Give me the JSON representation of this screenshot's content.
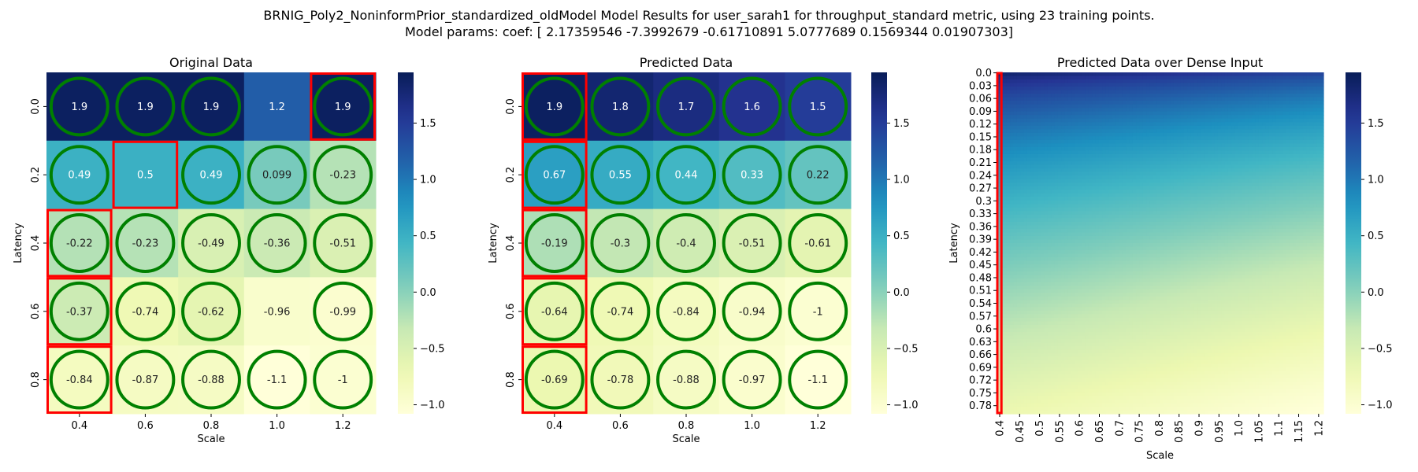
{
  "figure": {
    "title_line1": "BRNIG_Poly2_NoninformPrior_standardized_oldModel Model Results for user_sarah1 for throughput_standard metric, using 23 training points.",
    "title_line2": "Model params: coef: [ 2.17359546 -7.3992679  -0.61710891  5.0777689   0.1569344   0.01907303]"
  },
  "colormap": {
    "name": "YlGnBu",
    "range": [
      -1.08,
      1.95
    ],
    "stops": [
      "#ffffd9",
      "#edf8b1",
      "#c7e9b4",
      "#7fcdbb",
      "#41b6c4",
      "#1d91c0",
      "#225ea8",
      "#253494",
      "#081d58"
    ],
    "ticks": [
      -1.0,
      -0.5,
      0.0,
      0.5,
      1.0,
      1.5
    ],
    "tick_labels": [
      "−1.0",
      "−0.5",
      "0.0",
      "0.5",
      "1.0",
      "1.5"
    ]
  },
  "colors": {
    "circle": "#008000",
    "box": "#ff0000",
    "dark_text": "#222222",
    "light_text": "#ffffff"
  },
  "chart_data": [
    {
      "type": "heatmap",
      "title": "Original Data",
      "xlabel": "Scale",
      "ylabel": "Latency",
      "x": [
        "0.4",
        "0.6",
        "0.8",
        "1.0",
        "1.2"
      ],
      "y": [
        "0.0",
        "0.2",
        "0.4",
        "0.6",
        "0.8"
      ],
      "values": [
        [
          1.9,
          1.9,
          1.9,
          1.2,
          1.9
        ],
        [
          0.49,
          0.5,
          0.49,
          0.099,
          -0.23
        ],
        [
          -0.22,
          -0.23,
          -0.49,
          -0.36,
          -0.51
        ],
        [
          -0.37,
          -0.74,
          -0.62,
          -0.96,
          -0.99
        ],
        [
          -0.84,
          -0.87,
          -0.88,
          -1.1,
          -1
        ]
      ],
      "labels": [
        [
          "1.9",
          "1.9",
          "1.9",
          "1.2",
          "1.9"
        ],
        [
          "0.49",
          "0.5",
          "0.49",
          "0.099",
          "-0.23"
        ],
        [
          "-0.22",
          "-0.23",
          "-0.49",
          "-0.36",
          "-0.51"
        ],
        [
          "-0.37",
          "-0.74",
          "-0.62",
          "-0.96",
          "-0.99"
        ],
        [
          "-0.84",
          "-0.87",
          "-0.88",
          "-1.1",
          "-1"
        ]
      ],
      "circled": [
        [
          1,
          1,
          1,
          0,
          1
        ],
        [
          1,
          0,
          1,
          1,
          1
        ],
        [
          1,
          1,
          1,
          1,
          1
        ],
        [
          1,
          1,
          1,
          0,
          1
        ],
        [
          1,
          1,
          1,
          1,
          1
        ]
      ],
      "boxed_cells": [
        [
          0,
          4
        ],
        [
          1,
          1
        ],
        [
          2,
          0
        ],
        [
          3,
          0
        ],
        [
          4,
          0
        ]
      ]
    },
    {
      "type": "heatmap",
      "title": "Predicted Data",
      "xlabel": "Scale",
      "ylabel": "Latency",
      "x": [
        "0.4",
        "0.6",
        "0.8",
        "1.0",
        "1.2"
      ],
      "y": [
        "0.0",
        "0.2",
        "0.4",
        "0.6",
        "0.8"
      ],
      "values": [
        [
          1.9,
          1.8,
          1.7,
          1.6,
          1.5
        ],
        [
          0.67,
          0.55,
          0.44,
          0.33,
          0.22
        ],
        [
          -0.19,
          -0.3,
          -0.4,
          -0.51,
          -0.61
        ],
        [
          -0.64,
          -0.74,
          -0.84,
          -0.94,
          -1
        ],
        [
          -0.69,
          -0.78,
          -0.88,
          -0.97,
          -1.1
        ]
      ],
      "labels": [
        [
          "1.9",
          "1.8",
          "1.7",
          "1.6",
          "1.5"
        ],
        [
          "0.67",
          "0.55",
          "0.44",
          "0.33",
          "0.22"
        ],
        [
          "-0.19",
          "-0.3",
          "-0.4",
          "-0.51",
          "-0.61"
        ],
        [
          "-0.64",
          "-0.74",
          "-0.84",
          "-0.94",
          "-1"
        ],
        [
          "-0.69",
          "-0.78",
          "-0.88",
          "-0.97",
          "-1.1"
        ]
      ],
      "circled": [
        [
          1,
          1,
          1,
          1,
          1
        ],
        [
          1,
          1,
          1,
          1,
          1
        ],
        [
          1,
          1,
          1,
          1,
          1
        ],
        [
          1,
          1,
          1,
          1,
          1
        ],
        [
          1,
          1,
          1,
          1,
          1
        ]
      ],
      "boxed_cells": [
        [
          0,
          0
        ],
        [
          1,
          0
        ],
        [
          2,
          0
        ],
        [
          3,
          0
        ],
        [
          4,
          0
        ]
      ]
    },
    {
      "type": "heatmap",
      "title": "Predicted Data over Dense Input",
      "xlabel": "Scale",
      "ylabel": "Latency",
      "x_tick_labels": [
        "0.4",
        "0.45",
        "0.5",
        "0.55",
        "0.6",
        "0.65",
        "0.7",
        "0.75",
        "0.8",
        "0.85",
        "0.9",
        "0.95",
        "1.0",
        "1.05",
        "1.1",
        "1.15",
        "1.2"
      ],
      "y_tick_labels": [
        "0.0",
        "0.03",
        "0.06",
        "0.09",
        "0.12",
        "0.15",
        "0.18",
        "0.21",
        "0.24",
        "0.27",
        "0.3",
        "0.33",
        "0.36",
        "0.39",
        "0.42",
        "0.45",
        "0.48",
        "0.51",
        "0.54",
        "0.57",
        "0.6",
        "0.63",
        "0.66",
        "0.69",
        "0.72",
        "0.75",
        "0.78"
      ],
      "model": {
        "form": "degree-2 polynomial of scale and latency",
        "fitted_corners": {
          "latency_0.0_scale_0.4": 1.9,
          "latency_0.0_scale_1.2": 1.5,
          "latency_0.8_scale_0.4": -0.69,
          "latency_0.8_scale_1.2": -1.1
        }
      },
      "boxed_column": "0.4"
    }
  ]
}
